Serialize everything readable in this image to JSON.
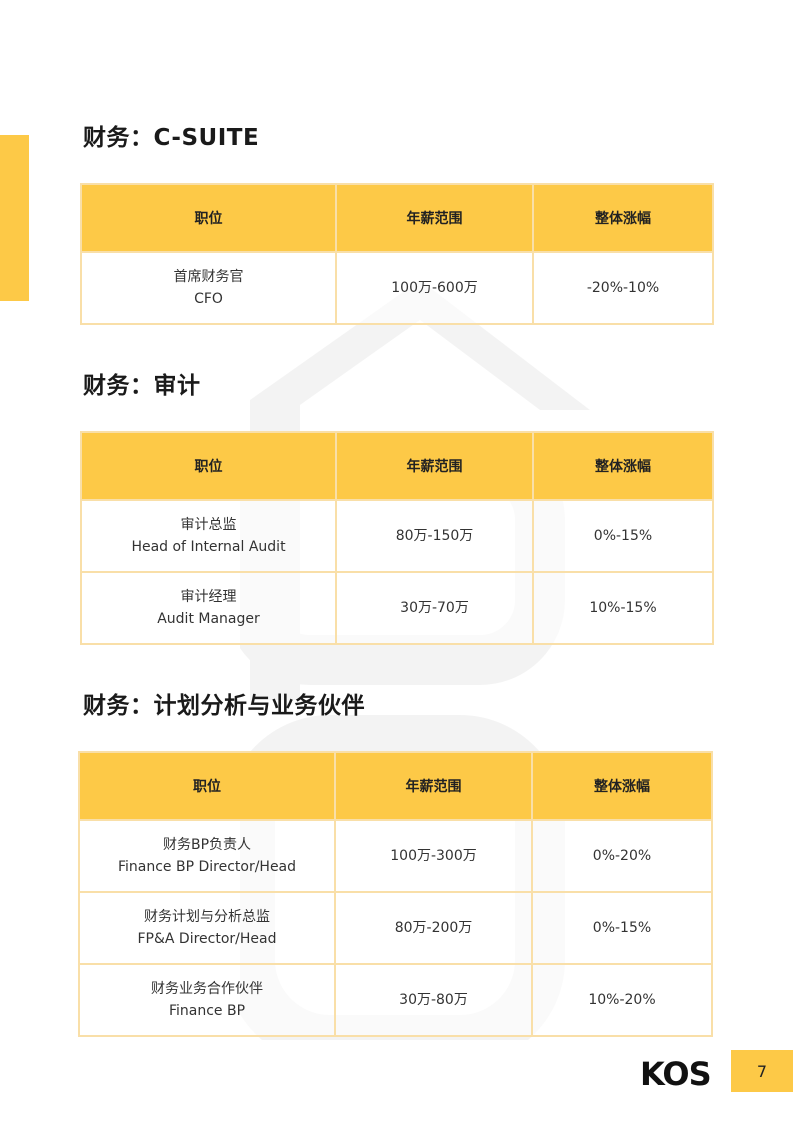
{
  "accent_color": "#FDC947",
  "sections": [
    {
      "title": "财务：C-SUITE",
      "headers": [
        "职位",
        "年薪范围",
        "整体涨幅"
      ],
      "rows": [
        {
          "title_cn": "首席财务官",
          "title_en": "CFO",
          "salary": "100万-600万",
          "growth": "-20%-10%"
        }
      ]
    },
    {
      "title": "财务：审计",
      "headers": [
        "职位",
        "年薪范围",
        "整体涨幅"
      ],
      "rows": [
        {
          "title_cn": "审计总监",
          "title_en": "Head of Internal Audit",
          "salary": "80万-150万",
          "growth": "0%-15%"
        },
        {
          "title_cn": "审计经理",
          "title_en": "Audit Manager",
          "salary": "30万-70万",
          "growth": "10%-15%"
        }
      ]
    },
    {
      "title": "财务：计划分析与业务伙伴",
      "headers": [
        "职位",
        "年薪范围",
        "整体涨幅"
      ],
      "rows": [
        {
          "title_cn": "财务BP负责人",
          "title_en": "Finance BP Director/Head",
          "salary": "100万-300万",
          "growth": "0%-20%"
        },
        {
          "title_cn": "财务计划与分析总监",
          "title_en": "FP&A Director/Head",
          "salary": "80万-200万",
          "growth": "0%-15%"
        },
        {
          "title_cn": "财务业务合作伙伴",
          "title_en": "Finance BP",
          "salary": "30万-80万",
          "growth": "10%-20%"
        }
      ]
    }
  ],
  "footer": {
    "logo": "KOS",
    "page_number": "7"
  }
}
